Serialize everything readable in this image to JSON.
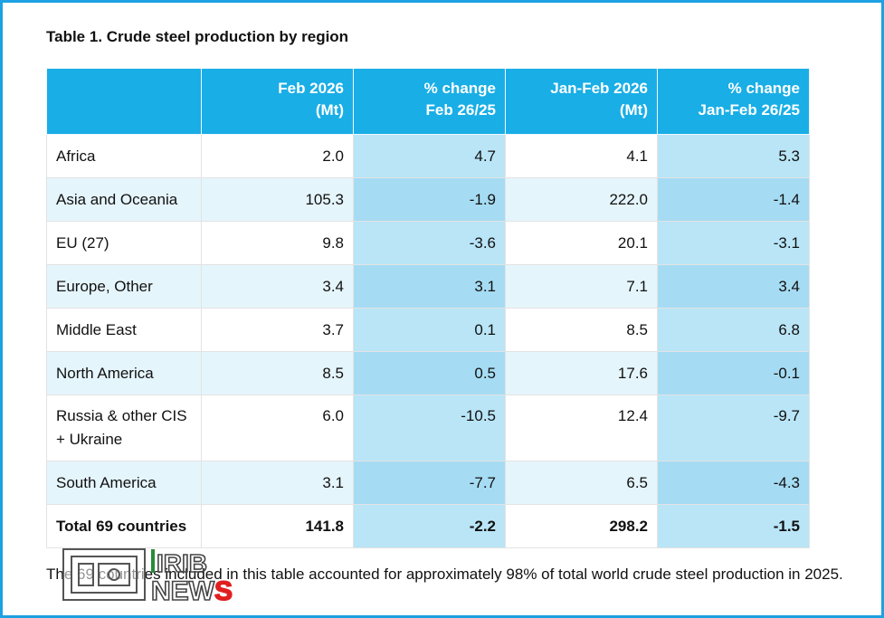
{
  "title": "Table 1. Crude steel production by region",
  "table": {
    "headers": [
      {
        "line1": "",
        "line2": ""
      },
      {
        "line1": "Feb 2026",
        "line2": "(Mt)"
      },
      {
        "line1": "% change",
        "line2": "Feb 26/25"
      },
      {
        "line1": "Jan-Feb 2026",
        "line2": "(Mt)"
      },
      {
        "line1": "% change",
        "line2": "Jan-Feb 26/25"
      }
    ],
    "rows": [
      {
        "region": "Africa",
        "feb": "2.0",
        "feb_pct": "4.7",
        "janfeb": "4.1",
        "janfeb_pct": "5.3"
      },
      {
        "region": "Asia and Oceania",
        "feb": "105.3",
        "feb_pct": "-1.9",
        "janfeb": "222.0",
        "janfeb_pct": "-1.4"
      },
      {
        "region": "EU (27)",
        "feb": "9.8",
        "feb_pct": "-3.6",
        "janfeb": "20.1",
        "janfeb_pct": "-3.1"
      },
      {
        "region": "Europe, Other",
        "feb": "3.4",
        "feb_pct": "3.1",
        "janfeb": "7.1",
        "janfeb_pct": "3.4"
      },
      {
        "region": "Middle East",
        "feb": "3.7",
        "feb_pct": "0.1",
        "janfeb": "8.5",
        "janfeb_pct": "6.8"
      },
      {
        "region": "North America",
        "feb": "8.5",
        "feb_pct": "0.5",
        "janfeb": "17.6",
        "janfeb_pct": "-0.1"
      },
      {
        "region_line1": "Russia & other CIS",
        "region_line2": "+ Ukraine",
        "feb": "6.0",
        "feb_pct": "-10.5",
        "janfeb": "12.4",
        "janfeb_pct": "-9.7"
      },
      {
        "region": "South America",
        "feb": "3.1",
        "feb_pct": "-7.7",
        "janfeb": "6.5",
        "janfeb_pct": "-4.3"
      },
      {
        "region": "Total 69 countries",
        "feb": "141.8",
        "feb_pct": "-2.2",
        "janfeb": "298.2",
        "janfeb_pct": "-1.5"
      }
    ]
  },
  "footnote": "The 69 countries included in this table accounted for approximately 98% of total world crude steel production in 2025.",
  "watermark": {
    "line1": "IRIB",
    "line2": "NEWS"
  },
  "colors": {
    "border": "#1da1e2",
    "header_bg": "#19aee6",
    "row_alt_bg": "#e5f5fc",
    "pct_bg": "#b9e5f7",
    "watermark_red": "#e02020",
    "watermark_green": "#2a8a3a"
  }
}
